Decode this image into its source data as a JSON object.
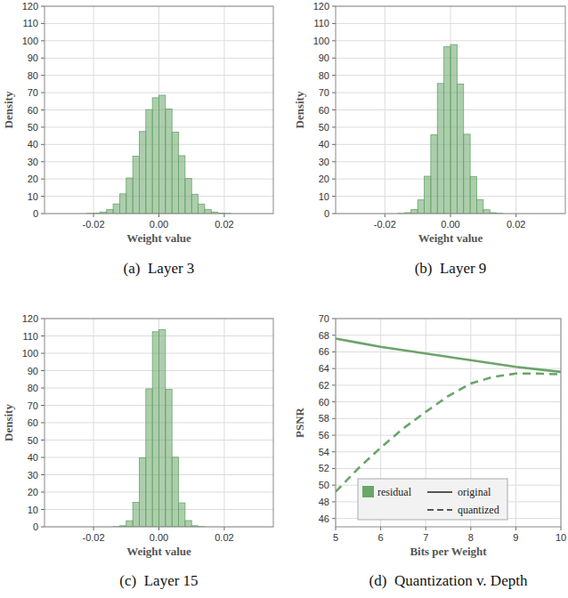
{
  "chart_data": [
    {
      "type": "histogram",
      "caption": "(a)  Layer 3",
      "x_label": "Weight value",
      "y_label": "Density",
      "color": "#6aa56a",
      "grid": true,
      "bins": [
        -0.03,
        -0.028,
        -0.026,
        -0.024,
        -0.022,
        -0.02,
        -0.018,
        -0.016,
        -0.014,
        -0.012,
        -0.01,
        -0.008,
        -0.006,
        -0.004,
        -0.002,
        0,
        0.002,
        0.004,
        0.006,
        0.008,
        0.01,
        0.012,
        0.014,
        0.016,
        0.018,
        0.02,
        0.022,
        0.024,
        0.026,
        0.028,
        0.03
      ],
      "counts": [
        0,
        0,
        0,
        0,
        0.1,
        0.3,
        0.9,
        2.4,
        5.6,
        11.4,
        20.6,
        33.2,
        47.5,
        60.2,
        67.0,
        68.5,
        60.6,
        47.1,
        33.5,
        20.3,
        11.2,
        5.5,
        2.4,
        0.9,
        0.3,
        0.1,
        0,
        0,
        0,
        0
      ],
      "xlim": [
        -0.035,
        0.035
      ],
      "xticks": [
        -0.02,
        {
          "value": 0,
          "label": "0.00"
        },
        0.02
      ],
      "ylim": [
        0,
        120
      ],
      "yticks": [
        0,
        10,
        20,
        30,
        40,
        50,
        60,
        70,
        80,
        90,
        100,
        110,
        120
      ]
    },
    {
      "type": "histogram",
      "caption": "(b)  Layer 9",
      "x_label": "Weight value",
      "y_label": "Density",
      "color": "#6aa56a",
      "grid": true,
      "bins": [
        -0.03,
        -0.028,
        -0.026,
        -0.024,
        -0.022,
        -0.02,
        -0.018,
        -0.016,
        -0.014,
        -0.012,
        -0.01,
        -0.008,
        -0.006,
        -0.004,
        -0.002,
        0,
        0.002,
        0.004,
        0.006,
        0.008,
        0.01,
        0.012,
        0.014,
        0.016,
        0.018,
        0.02,
        0.022,
        0.024,
        0.026,
        0.028,
        0.03
      ],
      "counts": [
        0,
        0,
        0,
        0,
        0,
        0,
        0,
        0.1,
        0.5,
        2.3,
        7.9,
        21.6,
        45.6,
        75.3,
        96.6,
        97.8,
        75.0,
        45.9,
        21.4,
        8.1,
        2.2,
        0.5,
        0.1,
        0,
        0,
        0,
        0,
        0,
        0,
        0
      ],
      "xlim": [
        -0.035,
        0.035
      ],
      "xticks": [
        -0.02,
        {
          "value": 0,
          "label": "0.00"
        },
        0.02
      ],
      "ylim": [
        0,
        120
      ],
      "yticks": [
        0,
        10,
        20,
        30,
        40,
        50,
        60,
        70,
        80,
        90,
        100,
        110,
        120
      ]
    },
    {
      "type": "histogram",
      "caption": "(c)  Layer 15",
      "x_label": "Weight value",
      "y_label": "Density",
      "color": "#6aa56a",
      "grid": true,
      "bins": [
        -0.03,
        -0.028,
        -0.026,
        -0.024,
        -0.022,
        -0.02,
        -0.018,
        -0.016,
        -0.014,
        -0.012,
        -0.01,
        -0.008,
        -0.006,
        -0.004,
        -0.002,
        0,
        0.002,
        0.004,
        0.006,
        0.008,
        0.01,
        0.012,
        0.014,
        0.016,
        0.018,
        0.02,
        0.022,
        0.024,
        0.026,
        0.028,
        0.03
      ],
      "counts": [
        0,
        0,
        0,
        0,
        0,
        0,
        0,
        0,
        0.1,
        0.6,
        3.5,
        14.1,
        39.8,
        79.5,
        112.4,
        113.6,
        79.2,
        40.1,
        13.8,
        3.6,
        0.6,
        0.1,
        0,
        0,
        0,
        0,
        0,
        0,
        0,
        0
      ],
      "xlim": [
        -0.035,
        0.035
      ],
      "xticks": [
        -0.02,
        {
          "value": 0,
          "label": "0.00"
        },
        0.02
      ],
      "ylim": [
        0,
        120
      ],
      "yticks": [
        0,
        10,
        20,
        30,
        40,
        50,
        60,
        70,
        80,
        90,
        100,
        110,
        120
      ]
    },
    {
      "type": "line",
      "caption": "(d)  Quantization v. Depth",
      "x_label": "Bits per Weight",
      "y_label": "PSNR",
      "grid": true,
      "legend": "lower left",
      "legend_group": "residual",
      "color": "#6aa56a",
      "x": [
        5,
        5.5,
        6,
        6.5,
        7,
        7.5,
        8,
        8.5,
        9,
        9.5,
        10
      ],
      "series": [
        {
          "name": "original",
          "color": "#6aa56a",
          "line_style": "solid",
          "values": [
            67.6,
            67.1,
            66.6,
            66.2,
            65.8,
            65.4,
            65.0,
            64.6,
            64.2,
            63.9,
            63.6
          ]
        },
        {
          "name": "quantized",
          "color": "#6aa56a",
          "line_style": "dashed",
          "values": [
            49.2,
            52.0,
            54.5,
            56.8,
            58.8,
            60.7,
            62.2,
            63.0,
            63.4,
            63.4,
            63.3
          ]
        }
      ],
      "xlim": [
        5,
        10
      ],
      "xticks": [
        5,
        6,
        7,
        8,
        9,
        10
      ],
      "ylim": [
        45,
        70
      ],
      "yticks": [
        46,
        48,
        50,
        52,
        54,
        56,
        58,
        60,
        62,
        64,
        66,
        68,
        70
      ]
    }
  ]
}
